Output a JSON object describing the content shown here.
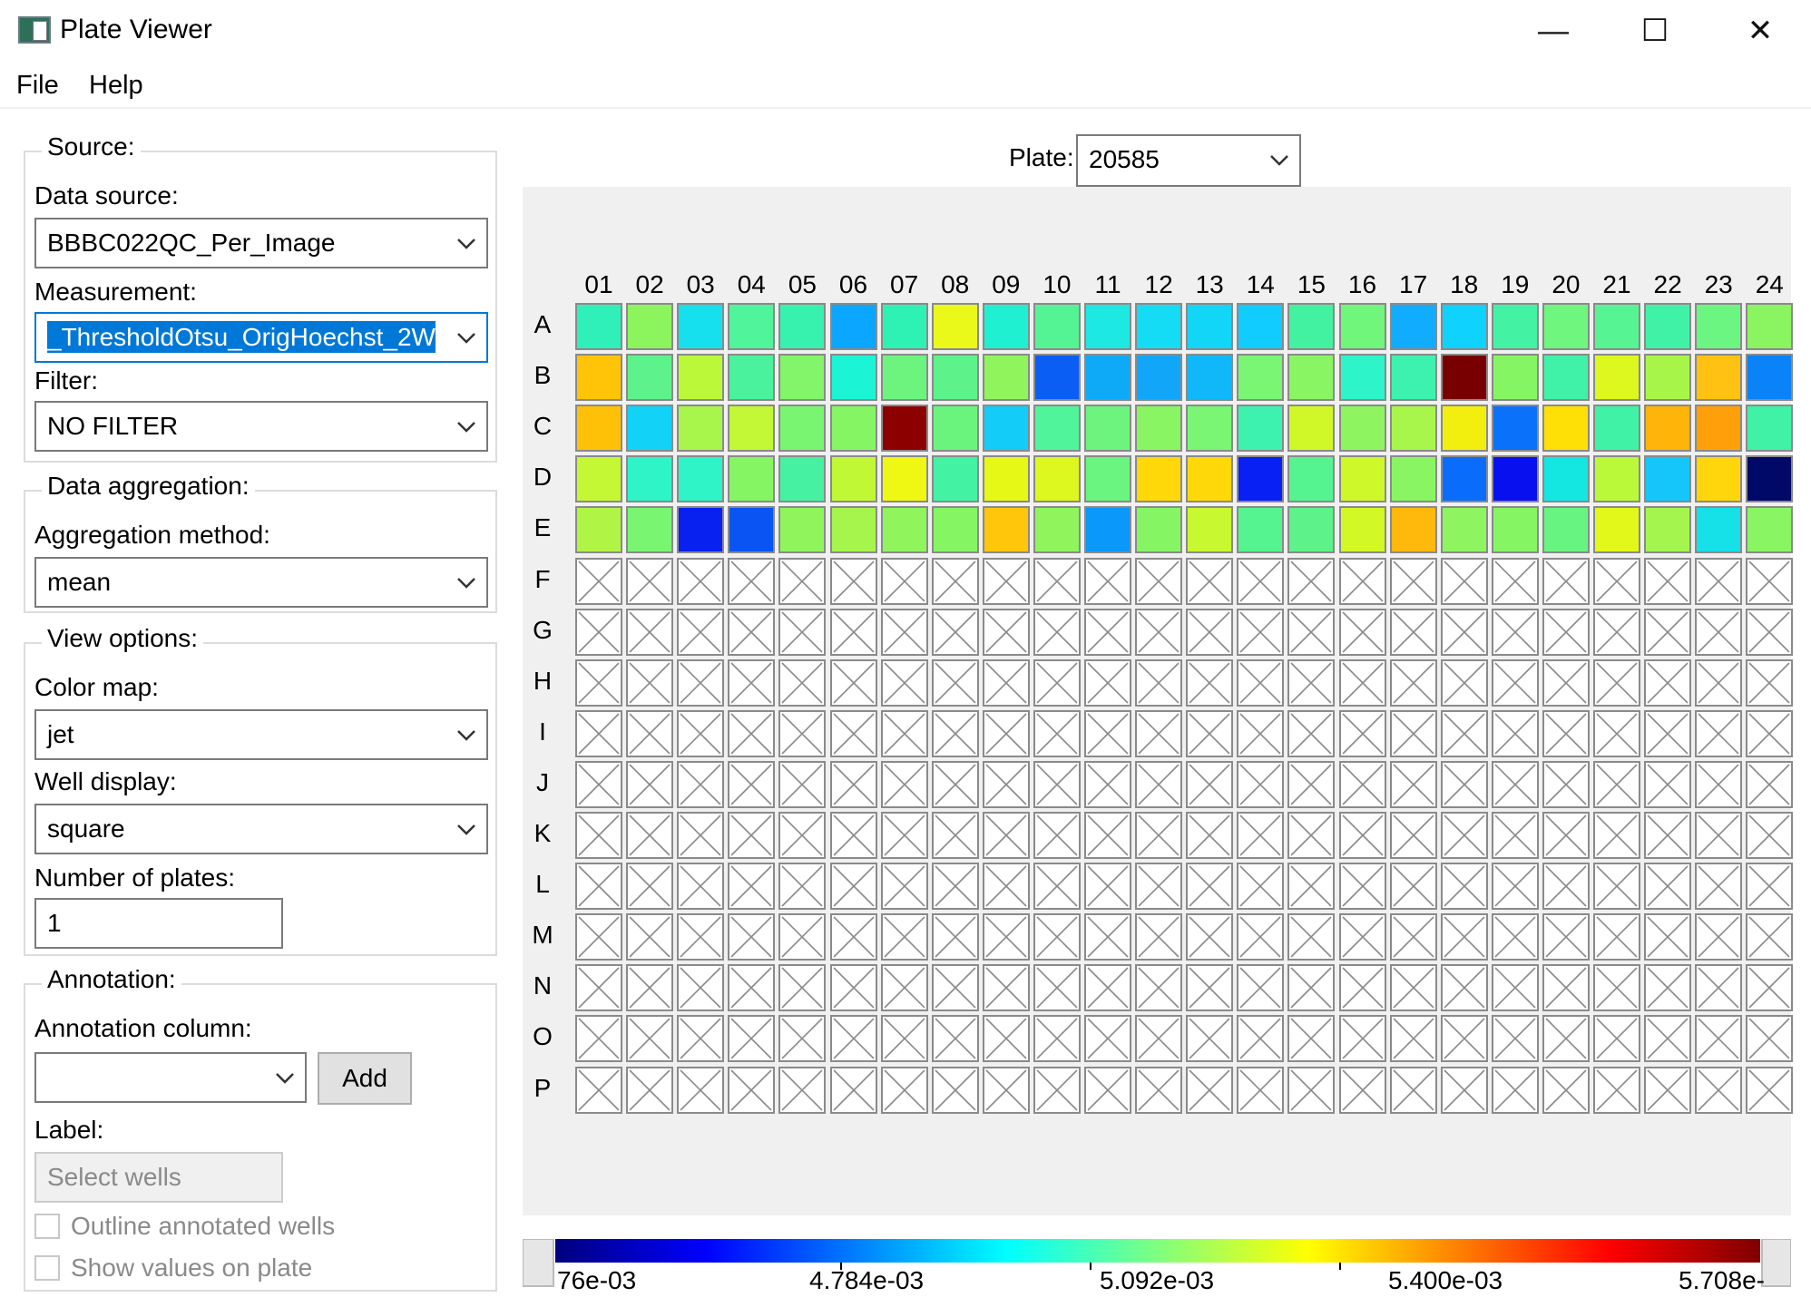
{
  "window": {
    "title": "Plate Viewer",
    "minimize": "—",
    "maximize": "☐",
    "close": "✕"
  },
  "menu": [
    "File",
    "Help"
  ],
  "source": {
    "group_title": "Source:",
    "data_source_label": "Data source:",
    "data_source_value": "BBBC022QC_Per_Image",
    "measurement_label": "Measurement:",
    "measurement_value": "_ThresholdOtsu_OrigHoechst_2W",
    "filter_label": "Filter:",
    "filter_value": "NO FILTER"
  },
  "aggregation": {
    "group_title": "Data aggregation:",
    "method_label": "Aggregation method:",
    "method_value": "mean"
  },
  "view_options": {
    "group_title": "View options:",
    "color_map_label": "Color map:",
    "color_map_value": "jet",
    "well_display_label": "Well display:",
    "well_display_value": "square",
    "num_plates_label": "Number of plates:",
    "num_plates_value": "1"
  },
  "annotation": {
    "group_title": "Annotation:",
    "column_label": "Annotation column:",
    "column_value": "",
    "add_button": "Add",
    "label_label": "Label:",
    "label_placeholder": "Select wells",
    "outline_checkbox": "Outline annotated wells",
    "show_values_checkbox": "Show values on plate"
  },
  "plate": {
    "label": "Plate:",
    "value": "20585",
    "columns": [
      "01",
      "02",
      "03",
      "04",
      "05",
      "06",
      "07",
      "08",
      "09",
      "10",
      "11",
      "12",
      "13",
      "14",
      "15",
      "16",
      "17",
      "18",
      "19",
      "20",
      "21",
      "22",
      "23",
      "24"
    ],
    "rows": [
      "A",
      "B",
      "C",
      "D",
      "E",
      "F",
      "G",
      "H",
      "I",
      "J",
      "K",
      "L",
      "M",
      "N",
      "O",
      "P"
    ],
    "empty_symbol": "no-data-x-icon",
    "well_colors": [
      [
        "#2ef0b8",
        "#8cf55e",
        "#16e0ee",
        "#50f49a",
        "#36f2ae",
        "#0aa6ff",
        "#2ef2b4",
        "#eaf81a",
        "#20f0d2",
        "#54f494",
        "#1ee8e2",
        "#14dcf4",
        "#12d6f8",
        "#10ccff",
        "#42f2a0",
        "#70f67a",
        "#12acff",
        "#10d2ff",
        "#44f2a4",
        "#6ef67e",
        "#56f492",
        "#40f2a6",
        "#6af680",
        "#8af560"
      ],
      [
        "#ffc408",
        "#5ef28c",
        "#bcf83a",
        "#4af29e",
        "#82f56a",
        "#1cf4d6",
        "#6cf47e",
        "#5ef28a",
        "#90f55c",
        "#0a5ef4",
        "#0eaaf8",
        "#12a6f8",
        "#10b8fa",
        "#7af574",
        "#8af562",
        "#2ef4ca",
        "#3cf2ae",
        "#780000",
        "#86f564",
        "#40f2a8",
        "#dcf81e",
        "#a8f54a",
        "#ffc212",
        "#0a82f8"
      ],
      [
        "#ffc008",
        "#12d2f8",
        "#a8f54c",
        "#c2f836",
        "#7af572",
        "#86f564",
        "#8c0000",
        "#6af47e",
        "#14ccf8",
        "#50f49a",
        "#6cf47e",
        "#8af562",
        "#7af574",
        "#3cf2ae",
        "#d0f828",
        "#8ef560",
        "#a8f54c",
        "#f2ee0e",
        "#0a72fa",
        "#ffe006",
        "#40f2a6",
        "#ffb40a",
        "#ffa00a",
        "#40f2a6"
      ],
      [
        "#c4f834",
        "#2ef4c8",
        "#2ef4c8",
        "#86f564",
        "#46f2a2",
        "#c0f836",
        "#eef812",
        "#44f2a4",
        "#e6f816",
        "#dcf81e",
        "#6af480",
        "#ffd80a",
        "#ffd80a",
        "#0820f4",
        "#56f490",
        "#cef82a",
        "#8af562",
        "#0a6cfa",
        "#0810f0",
        "#14e6e2",
        "#baf83a",
        "#14c6fa",
        "#ffd60c",
        "#000868"
      ],
      [
        "#b0f546",
        "#7af572",
        "#0820f0",
        "#0a54f4",
        "#90f55c",
        "#a6f54c",
        "#90f55c",
        "#86f564",
        "#ffc60c",
        "#90f55c",
        "#0a98fa",
        "#86f564",
        "#c8f830",
        "#56f490",
        "#5ef28a",
        "#d2f826",
        "#ffb80c",
        "#8ef560",
        "#86f564",
        "#68f480",
        "#e2f81a",
        "#a4f54e",
        "#16e0e8",
        "#8af562"
      ]
    ]
  },
  "colorbar": {
    "cmap_colors": [
      "#00007f",
      "#0000ff",
      "#007fff",
      "#00ffff",
      "#7fff7f",
      "#ffff00",
      "#ff7f00",
      "#ff0000",
      "#7f0000"
    ],
    "ticks": [
      "76e-03",
      "4.784e-03",
      "5.092e-03",
      "5.400e-03",
      "5.708e-"
    ]
  }
}
